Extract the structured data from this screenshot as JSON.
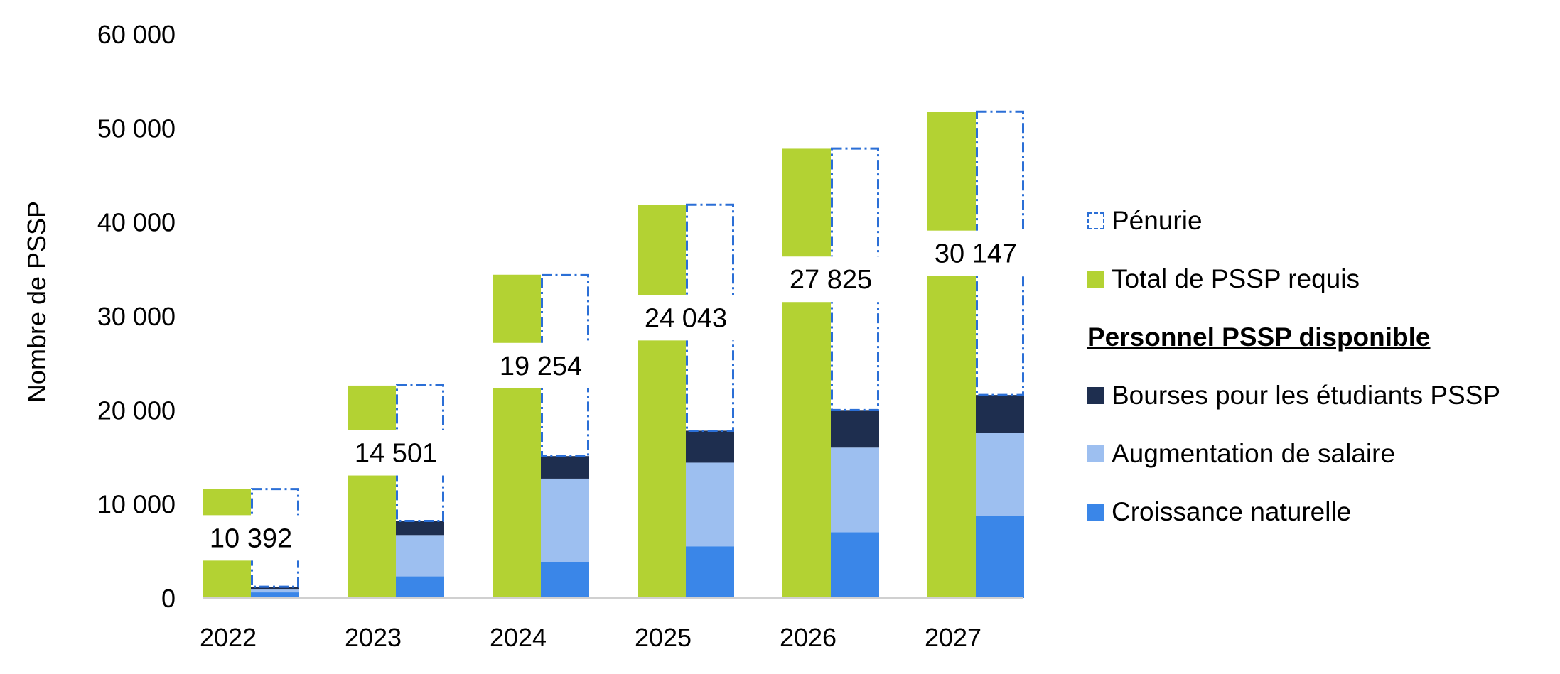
{
  "chart_data": {
    "type": "bar",
    "ylabel": "Nombre de PSSP",
    "ylim": [
      0,
      60000
    ],
    "yticks": [
      "0",
      "10 000",
      "20 000",
      "30 000",
      "40 000",
      "50 000",
      "60 000"
    ],
    "categories": [
      "2022",
      "2023",
      "2024",
      "2025",
      "2026",
      "2027"
    ],
    "series": [
      {
        "name": "Total de PSSP requis",
        "color": "#b3d233",
        "values": [
          11600,
          22600,
          34400,
          41800,
          47800,
          51700
        ]
      },
      {
        "name": "Croissance naturelle",
        "color": "#3a86e8",
        "values": [
          600,
          2300,
          3800,
          5500,
          7000,
          8700
        ]
      },
      {
        "name": "Augmentation de salaire",
        "color": "#9dbff0",
        "values": [
          300,
          4400,
          8900,
          8900,
          9000,
          8900
        ]
      },
      {
        "name": "Bourses pour les étudiants PSSP",
        "color": "#1e2e4f",
        "values": [
          300,
          1500,
          2400,
          3400,
          4000,
          4000
        ]
      },
      {
        "name": "Pénurie",
        "color": "#2b6fd6",
        "values": [
          10392,
          14501,
          19254,
          24043,
          27825,
          30147
        ]
      }
    ],
    "shortage_labels": [
      "10 392",
      "14 501",
      "19 254",
      "24 043",
      "27 825",
      "30 147"
    ]
  },
  "legend": {
    "shortage": "Pénurie",
    "required": "Total de PSSP requis",
    "header": "Personnel PSSP disponible",
    "scholarships": "Bourses pour les étudiants PSSP",
    "salary": "Augmentation de salaire",
    "natural": "Croissance naturelle"
  },
  "colors": {
    "required": "#b3d233",
    "natural": "#3a86e8",
    "salary": "#9dbff0",
    "scholarships": "#1e2e4f",
    "shortage_border": "#2b6fd6",
    "axis": "#d0d0d0"
  }
}
